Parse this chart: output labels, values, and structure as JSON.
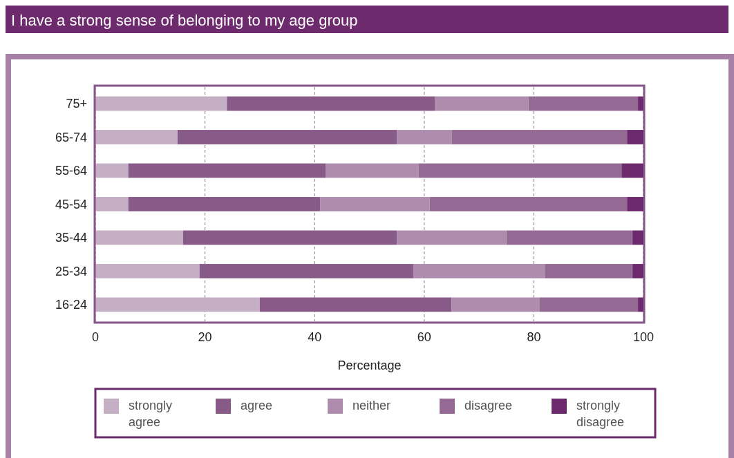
{
  "chart_data": {
    "type": "bar",
    "orientation": "horizontal",
    "stacked": true,
    "title": "I have a strong sense of belonging to my age group",
    "xlabel": "Percentage",
    "categories": [
      "75+",
      "65-74",
      "55-64",
      "45-54",
      "35-44",
      "25-34",
      "16-24"
    ],
    "series": [
      {
        "name": "strongly agree",
        "color": "#c5afc5",
        "values": [
          24,
          15,
          6,
          6,
          16,
          19,
          30
        ]
      },
      {
        "name": "agree",
        "color": "#875a87",
        "values": [
          38,
          40,
          36,
          35,
          39,
          39,
          35
        ]
      },
      {
        "name": "neither",
        "color": "#ae8cae",
        "values": [
          17,
          10,
          17,
          20,
          20,
          24,
          16
        ]
      },
      {
        "name": "disagree",
        "color": "#946a94",
        "values": [
          20,
          32,
          37,
          36,
          23,
          16,
          18
        ]
      },
      {
        "name": "strongly disagree",
        "color": "#6c2a6c",
        "values": [
          1,
          3,
          4,
          3,
          2,
          2,
          1
        ]
      }
    ],
    "xlim": [
      0,
      100
    ],
    "xticks": [
      0,
      20,
      40,
      60,
      80,
      100
    ],
    "grid": "x",
    "legend": "bottom"
  }
}
